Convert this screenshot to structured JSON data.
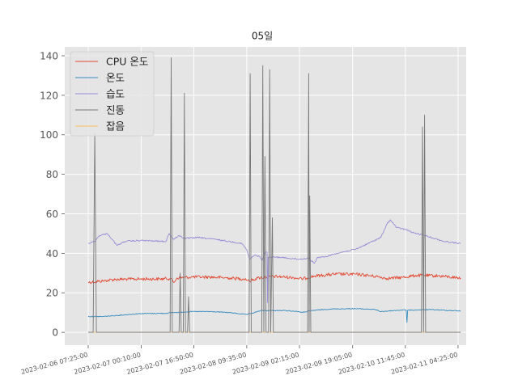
{
  "chart_data": {
    "type": "line",
    "title": "05일",
    "xlabel": "",
    "ylabel": "",
    "grid": true,
    "legend_position": "top-left",
    "ylim": [
      -6.5,
      144.5
    ],
    "yticks": [
      0,
      20,
      40,
      60,
      80,
      100,
      120,
      140
    ],
    "xlim": [
      "2023-02-06 00:00",
      "2023-02-11 07:00"
    ],
    "xticks": [
      {
        "t": "2023-02-06 07:25",
        "label": "2023-02-06 07:25:00"
      },
      {
        "t": "2023-02-07 00:10",
        "label": "2023-02-07 00:10:00"
      },
      {
        "t": "2023-02-07 16:50",
        "label": "2023-02-07 16:50:00"
      },
      {
        "t": "2023-02-08 09:35",
        "label": "2023-02-08 09:35:00"
      },
      {
        "t": "2023-02-09 02:15",
        "label": "2023-02-09 02:15:00"
      },
      {
        "t": "2023-02-09 19:05",
        "label": "2023-02-09 19:05:00"
      },
      {
        "t": "2023-02-10 11:45",
        "label": "2023-02-10 11:45:00"
      },
      {
        "t": "2023-02-11 04:25",
        "label": "2023-02-11 04:25:00"
      }
    ],
    "series": [
      {
        "name": "CPU 온도",
        "color": "#e24a33",
        "style": "noisy",
        "noise": 0.8,
        "points": [
          [
            "2023-02-06 07:25",
            25.3
          ],
          [
            "2023-02-06 12:00",
            26.0
          ],
          [
            "2023-02-06 16:00",
            26.8
          ],
          [
            "2023-02-06 20:00",
            26.9
          ],
          [
            "2023-02-07 00:00",
            27.0
          ],
          [
            "2023-02-07 06:00",
            27.0
          ],
          [
            "2023-02-07 09:30",
            27.3
          ],
          [
            "2023-02-07 10:30",
            25.2
          ],
          [
            "2023-02-07 11:30",
            27.5
          ],
          [
            "2023-02-07 16:00",
            28.0
          ],
          [
            "2023-02-07 22:00",
            28.0
          ],
          [
            "2023-02-08 04:00",
            27.5
          ],
          [
            "2023-02-08 09:00",
            27.0
          ],
          [
            "2023-02-08 10:30",
            26.0
          ],
          [
            "2023-02-08 13:00",
            27.5
          ],
          [
            "2023-02-08 18:00",
            28.3
          ],
          [
            "2023-02-09 00:00",
            27.8
          ],
          [
            "2023-02-09 03:00",
            27.0
          ],
          [
            "2023-02-09 07:00",
            28.5
          ],
          [
            "2023-02-09 14:00",
            29.5
          ],
          [
            "2023-02-09 21:00",
            29.3
          ],
          [
            "2023-02-10 03:00",
            28.2
          ],
          [
            "2023-02-10 06:00",
            27.3
          ],
          [
            "2023-02-10 11:00",
            27.8
          ],
          [
            "2023-02-10 15:00",
            28.8
          ],
          [
            "2023-02-10 22:00",
            28.6
          ],
          [
            "2023-02-11 05:15",
            27.5
          ]
        ]
      },
      {
        "name": "온도",
        "color": "#348abd",
        "style": "noisy",
        "noise": 0.2,
        "points": [
          [
            "2023-02-06 07:25",
            8.0
          ],
          [
            "2023-02-06 12:00",
            8.0
          ],
          [
            "2023-02-06 20:00",
            9.0
          ],
          [
            "2023-02-07 00:00",
            9.5
          ],
          [
            "2023-02-07 08:00",
            9.6
          ],
          [
            "2023-02-07 10:00",
            10.0
          ],
          [
            "2023-02-07 11:00",
            10.0
          ],
          [
            "2023-02-07 16:00",
            10.5
          ],
          [
            "2023-02-07 22:00",
            10.5
          ],
          [
            "2023-02-08 04:00",
            10.0
          ],
          [
            "2023-02-08 09:30",
            9.0
          ],
          [
            "2023-02-08 11:00",
            9.5
          ],
          [
            "2023-02-08 14:00",
            11.0
          ],
          [
            "2023-02-08 22:00",
            11.0
          ],
          [
            "2023-02-09 02:00",
            10.5
          ],
          [
            "2023-02-09 03:00",
            10.0
          ],
          [
            "2023-02-09 06:00",
            11.0
          ],
          [
            "2023-02-09 12:00",
            11.8
          ],
          [
            "2023-02-09 20:00",
            12.0
          ],
          [
            "2023-02-10 02:00",
            11.6
          ],
          [
            "2023-02-10 04:00",
            10.5
          ],
          [
            "2023-02-10 08:00",
            11.0
          ],
          [
            "2023-02-10 11:00",
            11.3
          ],
          [
            "2023-02-10 12:00",
            11.3
          ],
          [
            "2023-02-10 12:15",
            5.0
          ],
          [
            "2023-02-10 12:30",
            11.2
          ],
          [
            "2023-02-10 20:00",
            11.5
          ],
          [
            "2023-02-11 05:15",
            10.8
          ]
        ]
      },
      {
        "name": "습도",
        "color": "#988ed5",
        "style": "noisy",
        "noise": 0.35,
        "points": [
          [
            "2023-02-06 07:25",
            45.0
          ],
          [
            "2023-02-06 09:30",
            46.0
          ],
          [
            "2023-02-06 11:00",
            49.0
          ],
          [
            "2023-02-06 13:30",
            50.0
          ],
          [
            "2023-02-06 15:00",
            47.0
          ],
          [
            "2023-02-06 16:30",
            44.0
          ],
          [
            "2023-02-06 19:00",
            46.0
          ],
          [
            "2023-02-07 00:00",
            46.5
          ],
          [
            "2023-02-07 08:00",
            46.0
          ],
          [
            "2023-02-07 09:00",
            50.0
          ],
          [
            "2023-02-07 10:30",
            47.0
          ],
          [
            "2023-02-07 12:00",
            49.0
          ],
          [
            "2023-02-07 14:00",
            47.5
          ],
          [
            "2023-02-07 18:00",
            48.0
          ],
          [
            "2023-02-08 00:00",
            47.0
          ],
          [
            "2023-02-08 08:00",
            45.0
          ],
          [
            "2023-02-08 09:30",
            42.0
          ],
          [
            "2023-02-08 10:30",
            37.0
          ],
          [
            "2023-02-08 12:00",
            39.0
          ],
          [
            "2023-02-08 13:30",
            38.5
          ],
          [
            "2023-02-08 14:30",
            36.5
          ],
          [
            "2023-02-08 15:30",
            40.5
          ],
          [
            "2023-02-08 16:00",
            40.5
          ],
          [
            "2023-02-08 16:10",
            15.0
          ],
          [
            "2023-02-08 16:20",
            38.0
          ],
          [
            "2023-02-08 20:00",
            38.0
          ],
          [
            "2023-02-09 02:00",
            37.0
          ],
          [
            "2023-02-09 05:00",
            37.5
          ],
          [
            "2023-02-09 07:00",
            35.0
          ],
          [
            "2023-02-09 08:00",
            38.0
          ],
          [
            "2023-02-09 10:00",
            38.0
          ],
          [
            "2023-02-09 14:00",
            40.0
          ],
          [
            "2023-02-09 20:00",
            42.0
          ],
          [
            "2023-02-10 00:00",
            45.0
          ],
          [
            "2023-02-10 04:00",
            48.0
          ],
          [
            "2023-02-10 06:00",
            55.0
          ],
          [
            "2023-02-10 07:00",
            57.0
          ],
          [
            "2023-02-10 09:00",
            53.0
          ],
          [
            "2023-02-10 12:00",
            52.0
          ],
          [
            "2023-02-10 14:00",
            50.5
          ],
          [
            "2023-02-10 18:00",
            49.0
          ],
          [
            "2023-02-11 00:00",
            46.0
          ],
          [
            "2023-02-11 05:15",
            45.0
          ]
        ]
      },
      {
        "name": "진동",
        "color": "#777777",
        "style": "spikes",
        "points": [
          [
            "2023-02-06 07:25",
            0
          ],
          [
            "2023-02-06 09:00",
            0
          ],
          [
            "2023-02-06 09:30",
            101
          ],
          [
            "2023-02-06 10:00",
            0
          ],
          [
            "2023-02-07 09:20",
            0
          ],
          [
            "2023-02-07 09:40",
            139
          ],
          [
            "2023-02-07 10:00",
            0
          ],
          [
            "2023-02-07 12:10",
            0
          ],
          [
            "2023-02-07 12:30",
            30
          ],
          [
            "2023-02-07 12:50",
            0
          ],
          [
            "2023-02-07 13:30",
            0
          ],
          [
            "2023-02-07 13:50",
            121
          ],
          [
            "2023-02-07 14:10",
            0
          ],
          [
            "2023-02-07 14:50",
            0
          ],
          [
            "2023-02-07 15:10",
            18
          ],
          [
            "2023-02-07 15:30",
            0
          ],
          [
            "2023-02-08 10:20",
            0
          ],
          [
            "2023-02-08 10:40",
            131
          ],
          [
            "2023-02-08 11:00",
            0
          ],
          [
            "2023-02-08 14:20",
            0
          ],
          [
            "2023-02-08 14:40",
            135
          ],
          [
            "2023-02-08 15:00",
            0
          ],
          [
            "2023-02-08 15:20",
            89
          ],
          [
            "2023-02-08 15:40",
            0
          ],
          [
            "2023-02-08 16:30",
            0
          ],
          [
            "2023-02-08 16:50",
            133
          ],
          [
            "2023-02-08 17:10",
            0
          ],
          [
            "2023-02-08 17:40",
            58
          ],
          [
            "2023-02-08 18:00",
            0
          ],
          [
            "2023-02-09 04:50",
            0
          ],
          [
            "2023-02-09 05:10",
            131
          ],
          [
            "2023-02-09 05:20",
            0
          ],
          [
            "2023-02-09 05:30",
            69
          ],
          [
            "2023-02-09 05:50",
            0
          ],
          [
            "2023-02-10 16:50",
            0
          ],
          [
            "2023-02-10 17:10",
            104
          ],
          [
            "2023-02-10 17:30",
            0
          ],
          [
            "2023-02-10 17:50",
            110
          ],
          [
            "2023-02-10 18:10",
            0
          ],
          [
            "2023-02-11 05:15",
            0
          ]
        ]
      },
      {
        "name": "잡음",
        "color": "#fbc15e",
        "style": "plain",
        "points": [
          [
            "2023-02-06 07:25",
            0
          ],
          [
            "2023-02-11 05:15",
            0
          ]
        ]
      }
    ]
  }
}
